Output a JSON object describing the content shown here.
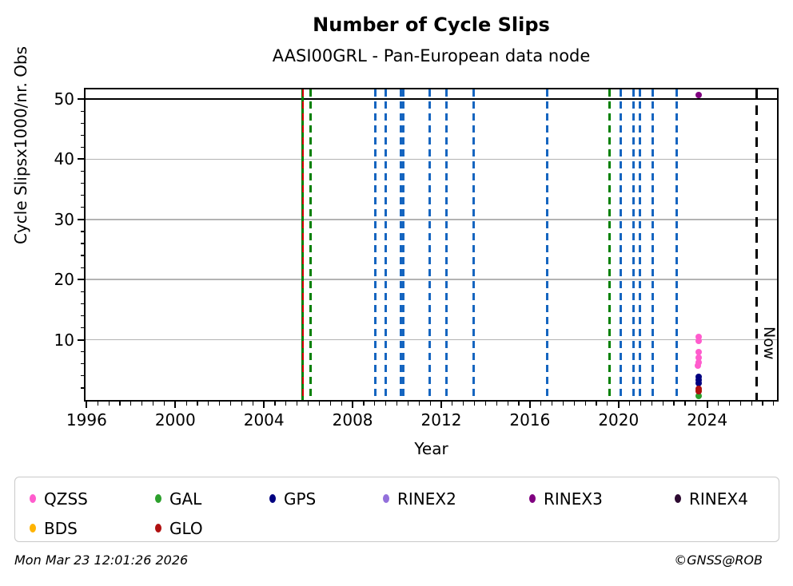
{
  "title": "Number of Cycle Slips",
  "subtitle": "AASI00GRL - Pan-European data node",
  "chart_data": {
    "type": "scatter",
    "xlabel": "Year",
    "ylabel": "Cycle Slipsx1000/nr. Obs",
    "xlim": [
      1995.95,
      2027.15
    ],
    "ylim": [
      0,
      51.6
    ],
    "x_major_ticks": [
      1996,
      2000,
      2004,
      2008,
      2012,
      2016,
      2020,
      2024
    ],
    "x_minor_step": 0.5,
    "y_major_ticks": [
      10,
      20,
      30,
      40,
      50
    ],
    "y_minor_step": 2,
    "grid": true,
    "gridline_color": "#b3b3b3",
    "threshold_line": {
      "y": 50,
      "color": "#000000"
    },
    "now_line": {
      "x": 2026.22,
      "label": "Now",
      "color": "#000000",
      "dash": "12 8"
    },
    "event_vlines": [
      {
        "x": 2005.76,
        "color": "#008000",
        "dash": "solid",
        "w": 3
      },
      {
        "x": 2005.76,
        "color": "#dd0000",
        "dash": "9 6",
        "w": 2.5
      },
      {
        "x": 2006.1,
        "color": "#008000",
        "dash": "9 6",
        "w": 3
      },
      {
        "x": 2009.03,
        "color": "#1565c0",
        "dash": "9 6",
        "w": 3
      },
      {
        "x": 2009.51,
        "color": "#1565c0",
        "dash": "9 6",
        "w": 3
      },
      {
        "x": 2010.19,
        "color": "#1565c0",
        "dash": "9 6",
        "w": 3
      },
      {
        "x": 2010.3,
        "color": "#1565c0",
        "dash": "9 6",
        "w": 3
      },
      {
        "x": 2011.46,
        "color": "#1565c0",
        "dash": "9 6",
        "w": 3
      },
      {
        "x": 2012.23,
        "color": "#1565c0",
        "dash": "9 6",
        "w": 3
      },
      {
        "x": 2013.47,
        "color": "#1565c0",
        "dash": "9 6",
        "w": 3
      },
      {
        "x": 2016.77,
        "color": "#1565c0",
        "dash": "9 6",
        "w": 3
      },
      {
        "x": 2019.61,
        "color": "#008000",
        "dash": "9 6",
        "w": 3
      },
      {
        "x": 2020.09,
        "color": "#1565c0",
        "dash": "9 6",
        "w": 3
      },
      {
        "x": 2020.66,
        "color": "#1565c0",
        "dash": "9 6",
        "w": 3
      },
      {
        "x": 2020.96,
        "color": "#1565c0",
        "dash": "9 6",
        "w": 3
      },
      {
        "x": 2021.53,
        "color": "#1565c0",
        "dash": "9 6",
        "w": 3
      },
      {
        "x": 2022.61,
        "color": "#1565c0",
        "dash": "9 6",
        "w": 3
      }
    ],
    "series": [
      {
        "name": "QZSS",
        "color": "#ff5ccd",
        "points": [
          [
            2023.6,
            10.5
          ],
          [
            2023.6,
            9.85
          ],
          [
            2023.6,
            8.0
          ],
          [
            2023.61,
            7.05
          ],
          [
            2023.6,
            6.3
          ],
          [
            2023.59,
            5.65
          ]
        ]
      },
      {
        "name": "GAL",
        "color": "#2ca02c",
        "points": [
          [
            2023.6,
            0.65
          ]
        ]
      },
      {
        "name": "GPS",
        "color": "#000080",
        "points": [
          [
            2023.6,
            3.9
          ],
          [
            2023.61,
            3.3
          ],
          [
            2023.6,
            2.75
          ]
        ]
      },
      {
        "name": "RINEX2",
        "color": "#9370db",
        "points": []
      },
      {
        "name": "RINEX3",
        "color": "#800080",
        "points": [
          [
            2023.6,
            50.7
          ]
        ]
      },
      {
        "name": "RINEX4",
        "color": "#2d0a31",
        "points": []
      },
      {
        "name": "BDS",
        "color": "#ffb300",
        "points": [
          [
            2023.63,
            1.65
          ]
        ]
      },
      {
        "name": "GLO",
        "color": "#b01010",
        "points": [
          [
            2023.6,
            1.85
          ],
          [
            2023.61,
            1.5
          ]
        ]
      }
    ],
    "legend_position": "bottom"
  },
  "legend": {
    "items": [
      {
        "label": "QZSS",
        "color": "#ff5ccd"
      },
      {
        "label": "GAL",
        "color": "#2ca02c"
      },
      {
        "label": "GPS",
        "color": "#000080"
      },
      {
        "label": "RINEX2",
        "color": "#9370db"
      },
      {
        "label": "RINEX3",
        "color": "#800080"
      },
      {
        "label": "RINEX4",
        "color": "#2d0a31"
      },
      {
        "label": "BDS",
        "color": "#ffb300"
      },
      {
        "label": "GLO",
        "color": "#b01010"
      }
    ]
  },
  "footer": {
    "left": "Mon Mar 23 12:01:26 2026",
    "right": "©GNSS@ROB"
  }
}
